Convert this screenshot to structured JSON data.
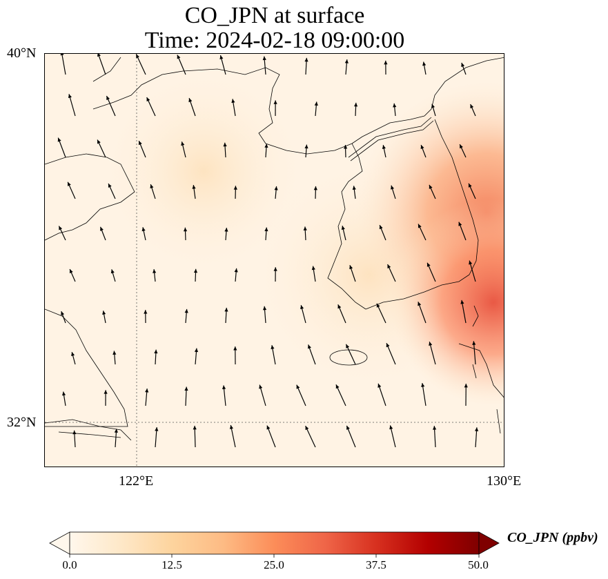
{
  "title": {
    "line1": "CO_JPN at surface",
    "line2": "Time: 2024-02-18 09:00:00"
  },
  "map": {
    "lat_labels": [
      "40°N",
      "32°N"
    ],
    "lon_labels": [
      "122°E",
      "130°E"
    ],
    "extent": {
      "lon_min": 120,
      "lon_max": 130,
      "lat_min": 31,
      "lat_max": 40
    },
    "gridlines": {
      "lons": [
        122
      ],
      "lats": [
        32
      ],
      "style": "dotted"
    }
  },
  "colorbar": {
    "label": "CO_JPN (ppbv)",
    "ticks": [
      "0.0",
      "12.5",
      "25.0",
      "37.5",
      "50.0"
    ],
    "min": 0,
    "max": 50,
    "extend": "both",
    "colormap": "OrRd",
    "colors": [
      "#fff7ec",
      "#fee8c8",
      "#fdd49e",
      "#fdbb84",
      "#fc8d59",
      "#ef6548",
      "#d7301f",
      "#b30000",
      "#7f0000"
    ]
  },
  "field_icons": [
    "wind-vector-arrow"
  ]
}
